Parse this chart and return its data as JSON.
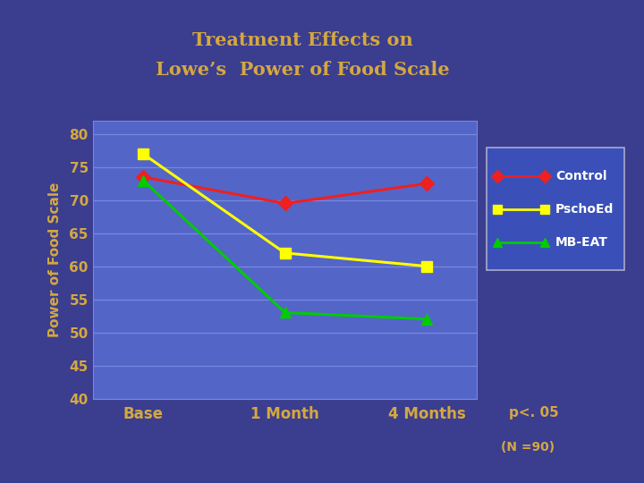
{
  "title_line1": "Treatment Effects on",
  "title_line2": "Lowe’s  Power of Food Scale",
  "title_color": "#D4A840",
  "xlabel_labels": [
    "Base",
    "1 Month",
    "4 Months"
  ],
  "ylabel": "Power of Food Scale",
  "ylim": [
    40,
    82
  ],
  "yticks": [
    40,
    45,
    50,
    55,
    60,
    65,
    70,
    75,
    80
  ],
  "background_outer": "#3B3D8F",
  "background_plot": "#5465C8",
  "grid_color": "#7888E0",
  "tick_label_color": "#D4A840",
  "control": {
    "values": [
      73.5,
      69.5,
      72.5
    ],
    "color": "#EE2020",
    "marker": "D",
    "label": "Control"
  },
  "pschoed": {
    "values": [
      77.0,
      62.0,
      60.0
    ],
    "color": "#FFFF00",
    "marker": "s",
    "label": "PschoEd"
  },
  "mbEAT": {
    "values": [
      73.0,
      53.0,
      52.0
    ],
    "color": "#00CC00",
    "marker": "^",
    "label": "MB-EAT"
  },
  "legend_bg": "#3A50B8",
  "legend_edge": "#AAAACC",
  "legend_text_color": "#FFFFFF",
  "p_value_text": "p<. 05",
  "n_text": "(N =90)",
  "line_width": 2.2,
  "marker_size": 8
}
